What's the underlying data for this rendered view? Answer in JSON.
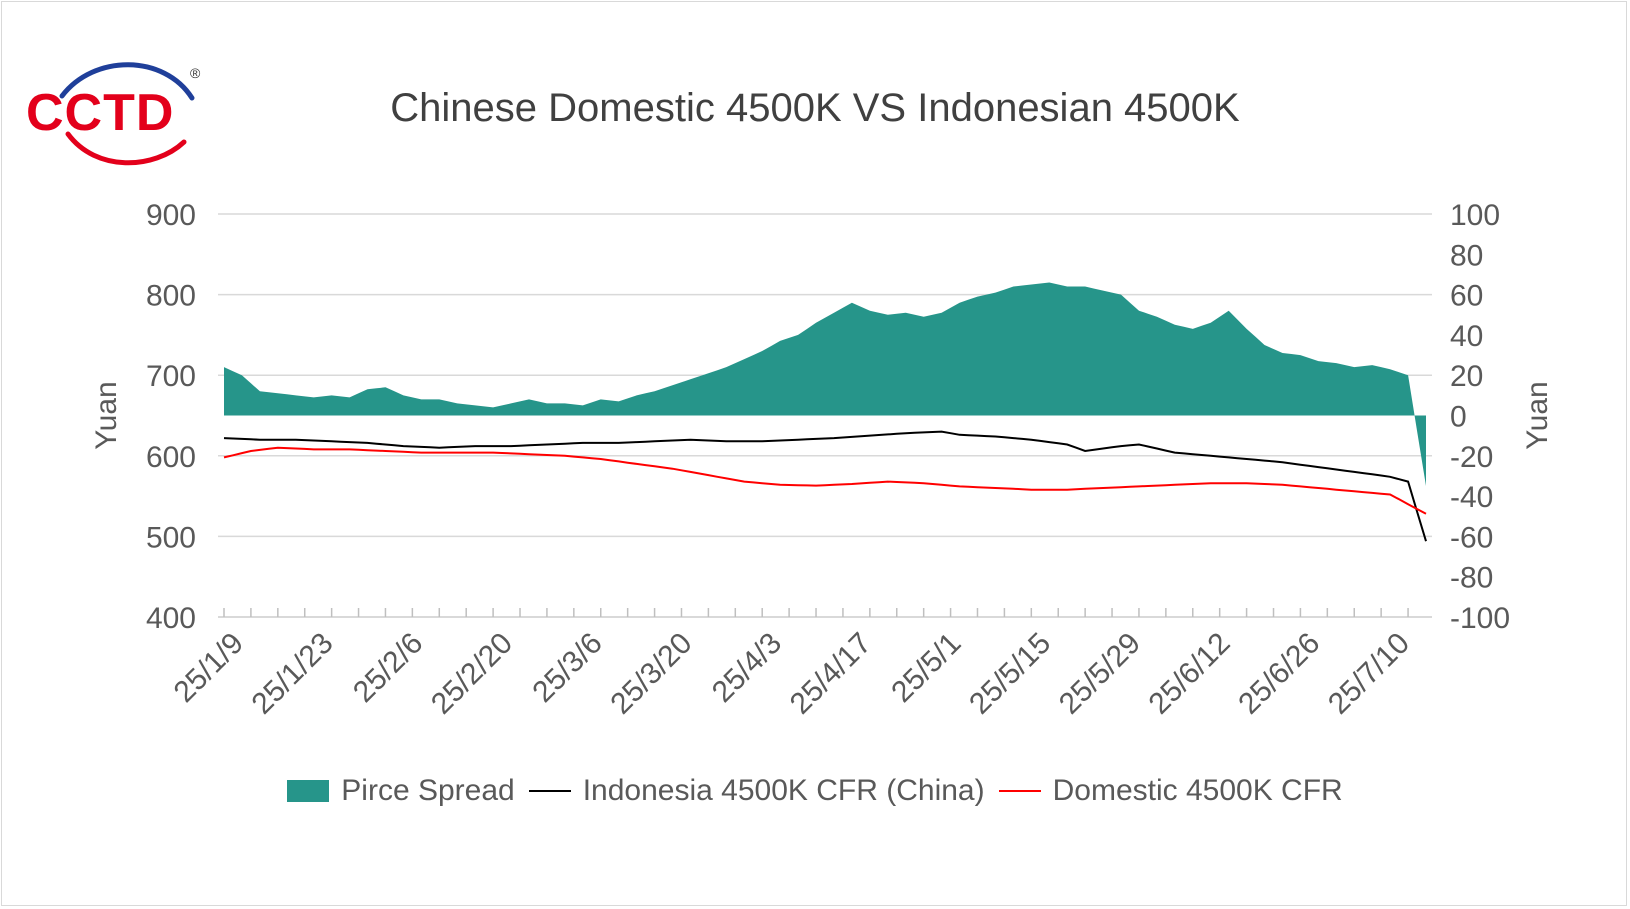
{
  "logo": {
    "text": "CCTD",
    "registered": "®"
  },
  "chart_data": {
    "type": "area",
    "title": "Chinese Domestic 4500K VS Indonesian 4500K",
    "ylabel_left": "Yuan",
    "ylabel_right": "Yuan",
    "ylim_left": [
      400,
      900
    ],
    "ylim_right": [
      -100,
      100
    ],
    "yticks_left": [
      400,
      500,
      600,
      700,
      800,
      900
    ],
    "yticks_right": [
      -100,
      -80,
      -60,
      -40,
      -20,
      0,
      20,
      40,
      60,
      80,
      100
    ],
    "grid": true,
    "legend_position": "bottom",
    "x_tick_labels": [
      "25/1/9",
      "25/1/23",
      "25/2/6",
      "25/2/20",
      "25/3/6",
      "25/3/20",
      "25/4/3",
      "25/4/17",
      "25/5/1",
      "25/5/15",
      "25/5/29",
      "25/6/12",
      "25/6/26",
      "25/7/10"
    ],
    "x_tick_index": [
      1,
      11,
      21,
      31,
      41,
      51,
      61,
      71,
      81,
      91,
      101,
      111,
      121,
      131
    ],
    "n_points": 135,
    "series": [
      {
        "name": "Pirce Spread",
        "type": "area",
        "axis": "right",
        "color": "#26958a",
        "keyframes": [
          [
            0,
            24
          ],
          [
            2,
            20
          ],
          [
            4,
            12
          ],
          [
            6,
            11
          ],
          [
            8,
            10
          ],
          [
            10,
            9
          ],
          [
            12,
            10
          ],
          [
            14,
            9
          ],
          [
            16,
            13
          ],
          [
            18,
            14
          ],
          [
            20,
            10
          ],
          [
            22,
            8
          ],
          [
            24,
            8
          ],
          [
            26,
            6
          ],
          [
            28,
            5
          ],
          [
            30,
            4
          ],
          [
            32,
            6
          ],
          [
            34,
            8
          ],
          [
            36,
            6
          ],
          [
            38,
            6
          ],
          [
            40,
            5
          ],
          [
            42,
            8
          ],
          [
            44,
            7
          ],
          [
            46,
            10
          ],
          [
            48,
            12
          ],
          [
            50,
            15
          ],
          [
            52,
            18
          ],
          [
            54,
            21
          ],
          [
            56,
            24
          ],
          [
            58,
            28
          ],
          [
            60,
            32
          ],
          [
            62,
            37
          ],
          [
            64,
            40
          ],
          [
            66,
            46
          ],
          [
            68,
            51
          ],
          [
            70,
            56
          ],
          [
            72,
            52
          ],
          [
            74,
            50
          ],
          [
            76,
            51
          ],
          [
            78,
            49
          ],
          [
            80,
            51
          ],
          [
            82,
            56
          ],
          [
            84,
            59
          ],
          [
            86,
            61
          ],
          [
            88,
            64
          ],
          [
            90,
            65
          ],
          [
            92,
            66
          ],
          [
            94,
            64
          ],
          [
            96,
            64
          ],
          [
            98,
            62
          ],
          [
            100,
            60
          ],
          [
            102,
            52
          ],
          [
            104,
            49
          ],
          [
            106,
            45
          ],
          [
            108,
            43
          ],
          [
            110,
            46
          ],
          [
            112,
            52
          ],
          [
            114,
            43
          ],
          [
            116,
            35
          ],
          [
            118,
            31
          ],
          [
            120,
            30
          ],
          [
            122,
            27
          ],
          [
            124,
            26
          ],
          [
            126,
            24
          ],
          [
            128,
            25
          ],
          [
            130,
            23
          ],
          [
            132,
            20
          ],
          [
            134,
            -35
          ]
        ]
      },
      {
        "name": "Indonesia 4500K CFR (China)",
        "type": "line",
        "axis": "left",
        "color": "#000000",
        "keyframes": [
          [
            0,
            622
          ],
          [
            4,
            620
          ],
          [
            8,
            620
          ],
          [
            12,
            618
          ],
          [
            16,
            616
          ],
          [
            20,
            612
          ],
          [
            24,
            610
          ],
          [
            28,
            612
          ],
          [
            32,
            612
          ],
          [
            36,
            614
          ],
          [
            40,
            616
          ],
          [
            44,
            616
          ],
          [
            48,
            618
          ],
          [
            52,
            620
          ],
          [
            56,
            618
          ],
          [
            60,
            618
          ],
          [
            64,
            620
          ],
          [
            68,
            622
          ],
          [
            72,
            625
          ],
          [
            76,
            628
          ],
          [
            80,
            630
          ],
          [
            82,
            626
          ],
          [
            86,
            624
          ],
          [
            90,
            620
          ],
          [
            94,
            614
          ],
          [
            96,
            606
          ],
          [
            98,
            609
          ],
          [
            100,
            612
          ],
          [
            102,
            614
          ],
          [
            106,
            604
          ],
          [
            110,
            600
          ],
          [
            114,
            596
          ],
          [
            118,
            592
          ],
          [
            122,
            586
          ],
          [
            126,
            580
          ],
          [
            130,
            574
          ],
          [
            132,
            568
          ],
          [
            134,
            494
          ]
        ]
      },
      {
        "name": "Domestic 4500K CFR",
        "type": "line",
        "axis": "left",
        "color": "#ff0000",
        "keyframes": [
          [
            0,
            598
          ],
          [
            3,
            606
          ],
          [
            6,
            610
          ],
          [
            10,
            608
          ],
          [
            14,
            608
          ],
          [
            18,
            606
          ],
          [
            22,
            604
          ],
          [
            26,
            604
          ],
          [
            30,
            604
          ],
          [
            34,
            602
          ],
          [
            38,
            600
          ],
          [
            42,
            596
          ],
          [
            46,
            590
          ],
          [
            50,
            584
          ],
          [
            54,
            576
          ],
          [
            58,
            568
          ],
          [
            62,
            564
          ],
          [
            66,
            563
          ],
          [
            70,
            565
          ],
          [
            74,
            568
          ],
          [
            78,
            566
          ],
          [
            82,
            562
          ],
          [
            86,
            560
          ],
          [
            90,
            558
          ],
          [
            94,
            558
          ],
          [
            98,
            560
          ],
          [
            102,
            562
          ],
          [
            106,
            564
          ],
          [
            110,
            566
          ],
          [
            114,
            566
          ],
          [
            118,
            564
          ],
          [
            122,
            560
          ],
          [
            126,
            556
          ],
          [
            130,
            552
          ],
          [
            134,
            528
          ]
        ]
      }
    ]
  }
}
